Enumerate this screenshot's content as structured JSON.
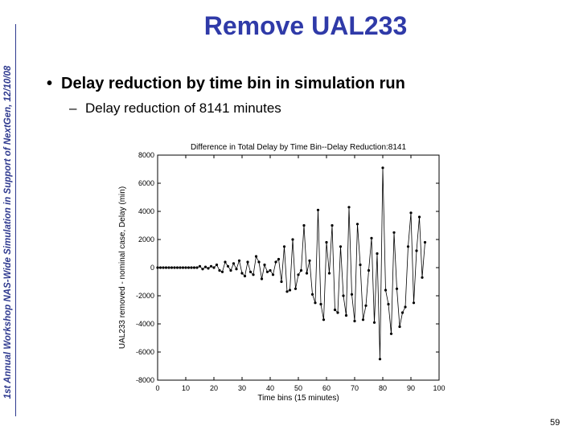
{
  "sidebar": {
    "text": "1st Annual Workshop NAS-Wide Simulation in Support of NextGen, 12/10/08"
  },
  "slide": {
    "title": "Remove UAL233",
    "bullet": "Delay reduction by time bin in simulation run",
    "sub_bullet": "Delay reduction of 8141 minutes",
    "page_number": "59"
  },
  "colors": {
    "title": "#2f3aa8",
    "sidebar": "#2f3a8f",
    "series": "#000000"
  },
  "chart_data": {
    "type": "line",
    "title": "Difference in Total Delay by Time Bin--Delay Reduction:8141",
    "xlabel": "Time bins (15 minutes)",
    "ylabel": "UAL233 removed - nominal case, Delay (min)",
    "xlim": [
      0,
      100
    ],
    "ylim": [
      -8000,
      8000
    ],
    "xticks": [
      0,
      10,
      20,
      30,
      40,
      50,
      60,
      70,
      80,
      90,
      100
    ],
    "yticks": [
      -8000,
      -6000,
      -4000,
      -2000,
      0,
      2000,
      4000,
      6000,
      8000
    ],
    "grid": false,
    "markers": true,
    "series": [
      {
        "x": [
          0,
          1,
          2,
          3,
          4,
          5,
          6,
          7,
          8,
          9,
          10,
          11,
          12,
          13,
          14,
          15,
          16,
          17,
          18,
          19,
          20,
          21,
          22,
          23,
          24,
          25,
          26,
          27,
          28,
          29,
          30,
          31,
          32,
          33,
          34,
          35,
          36,
          37,
          38,
          39,
          40,
          41,
          42,
          43,
          44,
          45,
          46,
          47,
          48,
          49,
          50,
          51,
          52,
          53,
          54,
          55,
          56,
          57,
          58,
          59,
          60,
          61,
          62,
          63,
          64,
          65,
          66,
          67,
          68,
          69,
          70,
          71,
          72,
          73,
          74,
          75,
          76,
          77,
          78,
          79,
          80,
          81,
          82,
          83,
          84,
          85,
          86,
          87,
          88,
          89,
          90,
          91,
          92,
          93,
          94,
          95
        ],
        "values": [
          0,
          0,
          0,
          0,
          0,
          0,
          0,
          0,
          0,
          0,
          0,
          0,
          0,
          0,
          0,
          100,
          -100,
          50,
          -50,
          100,
          0,
          200,
          -200,
          -300,
          400,
          100,
          -200,
          300,
          -100,
          500,
          -400,
          -600,
          400,
          -300,
          -500,
          800,
          400,
          -800,
          200,
          -300,
          -200,
          -500,
          400,
          600,
          -1000,
          1500,
          -1700,
          -1600,
          2000,
          -1500,
          -500,
          -200,
          3000,
          -400,
          500,
          -1900,
          -2500,
          4100,
          -2600,
          -3700,
          1800,
          -400,
          3000,
          -3000,
          -3200,
          1500,
          -2000,
          -3400,
          4300,
          -1900,
          -3800,
          3100,
          200,
          -3700,
          -2700,
          -200,
          2100,
          -3900,
          1000,
          -6500,
          7100,
          -1600,
          -2600,
          -4700,
          2500,
          -1500,
          -4200,
          -3200,
          -2800,
          1500,
          3900,
          -2500,
          1200,
          3600,
          -700,
          1800
        ]
      }
    ]
  }
}
